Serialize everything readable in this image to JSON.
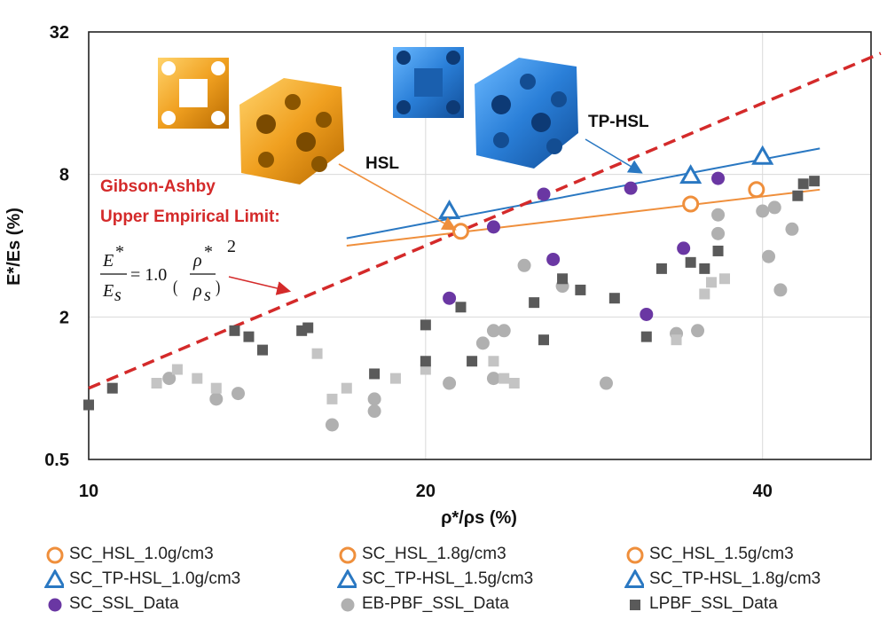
{
  "colors": {
    "orange": "#ef8f3c",
    "blue": "#2a78c2",
    "purple": "#6a37a3",
    "red": "#d42a2a",
    "eb_gray": "#b0b0b0",
    "lpbf_dark": "#5a5a5a",
    "lpbf_light": "#c4c4c4"
  },
  "annotations": {
    "hsl_label": "HSL",
    "tphsl_label": "TP-HSL",
    "ga_line1": "Gibson-Ashby",
    "ga_line2": "Upper Empirical Limit:",
    "eq_E": "E",
    "eq_Es": "E",
    "eq_s": "s",
    "eq_star": "*",
    "eq_coef": "= 1.0",
    "eq_rho": "ρ",
    "eq_exp": "2",
    "x_title": "ρ*/ρs (%)",
    "y_title": "E*/Es (%)"
  },
  "chart_data": {
    "type": "scatter",
    "xscale": "log",
    "yscale": "log",
    "xlabel": "ρ*/ρs (%)",
    "ylabel": "E*/Es (%)",
    "xlim": [
      10,
      50
    ],
    "ylim": [
      0.5,
      32
    ],
    "xticks": [
      10,
      20,
      40
    ],
    "yticks": [
      0.5,
      2,
      8,
      32
    ],
    "grid": true,
    "series": [
      {
        "name": "SC_HSL_1.0g/cm3",
        "marker": "circle-open",
        "color": "#ef8f3c",
        "points": [
          [
            21.5,
            4.6
          ]
        ]
      },
      {
        "name": "SC_HSL_1.8g/cm3",
        "marker": "circle-open",
        "color": "#ef8f3c",
        "points": [
          [
            34.5,
            6.0
          ]
        ]
      },
      {
        "name": "SC_HSL_1.5g/cm3",
        "marker": "circle-open",
        "color": "#ef8f3c",
        "points": [
          [
            39.5,
            6.9
          ]
        ]
      },
      {
        "name": "SC_TP-HSL_1.0g/cm3",
        "marker": "triangle-open",
        "color": "#2a78c2",
        "points": [
          [
            21.0,
            5.6
          ]
        ]
      },
      {
        "name": "SC_TP-HSL_1.5g/cm3",
        "marker": "triangle-open",
        "color": "#2a78c2",
        "points": [
          [
            34.5,
            7.9
          ]
        ]
      },
      {
        "name": "SC_TP-HSL_1.8g/cm3",
        "marker": "triangle-open",
        "color": "#2a78c2",
        "points": [
          [
            40.0,
            9.5
          ]
        ]
      },
      {
        "name": "SC_SSL_Data",
        "marker": "circle",
        "color": "#6a37a3",
        "points": [
          [
            21.0,
            2.4
          ],
          [
            23.0,
            4.8
          ],
          [
            25.5,
            6.6
          ],
          [
            26.0,
            3.5
          ],
          [
            30.5,
            7.0
          ],
          [
            31.5,
            2.05
          ],
          [
            34.0,
            3.9
          ],
          [
            36.5,
            7.7
          ]
        ]
      },
      {
        "name": "EB-PBF_SSL_Data",
        "marker": "circle",
        "color": "#b0b0b0",
        "points": [
          [
            11.8,
            1.1
          ],
          [
            13.0,
            0.9
          ],
          [
            13.6,
            0.95
          ],
          [
            16.5,
            0.7
          ],
          [
            18.0,
            0.8
          ],
          [
            18.0,
            0.9
          ],
          [
            21.0,
            1.05
          ],
          [
            22.5,
            1.55
          ],
          [
            23.0,
            1.75
          ],
          [
            23.0,
            1.1
          ],
          [
            23.5,
            1.75
          ],
          [
            24.5,
            3.3
          ],
          [
            26.5,
            2.7
          ],
          [
            29.0,
            1.05
          ],
          [
            33.5,
            1.7
          ],
          [
            35.0,
            1.75
          ],
          [
            36.5,
            5.4
          ],
          [
            36.5,
            4.5
          ],
          [
            40.0,
            5.6
          ],
          [
            41.0,
            5.8
          ],
          [
            40.5,
            3.6
          ],
          [
            41.5,
            2.6
          ],
          [
            42.5,
            4.7
          ]
        ]
      },
      {
        "name": "LPBF_SSL_Data",
        "marker": "square",
        "color": "#5a5a5a",
        "points": [
          [
            10.0,
            0.85
          ],
          [
            10.5,
            1.0
          ],
          [
            13.5,
            1.75
          ],
          [
            13.9,
            1.65
          ],
          [
            14.3,
            1.45
          ],
          [
            15.5,
            1.75
          ],
          [
            15.7,
            1.8
          ],
          [
            18.0,
            1.15
          ],
          [
            20.0,
            1.85
          ],
          [
            20.0,
            1.3
          ],
          [
            21.5,
            2.2
          ],
          [
            22.0,
            1.3
          ],
          [
            25.0,
            2.3
          ],
          [
            25.5,
            1.6
          ],
          [
            26.5,
            2.9
          ],
          [
            27.5,
            2.6
          ],
          [
            29.5,
            2.4
          ],
          [
            31.5,
            1.65
          ],
          [
            32.5,
            3.2
          ],
          [
            34.5,
            3.4
          ],
          [
            35.5,
            3.2
          ],
          [
            36.5,
            3.8
          ],
          [
            43.0,
            6.5
          ],
          [
            43.5,
            7.3
          ],
          [
            44.5,
            7.5
          ]
        ]
      },
      {
        "name": "LPBF_SSL_Data_light",
        "legend": false,
        "marker": "square",
        "color": "#c4c4c4",
        "points": [
          [
            11.5,
            1.05
          ],
          [
            12.0,
            1.2
          ],
          [
            12.5,
            1.1
          ],
          [
            13.0,
            1.0
          ],
          [
            16.0,
            1.4
          ],
          [
            16.5,
            0.9
          ],
          [
            17.0,
            1.0
          ],
          [
            18.8,
            1.1
          ],
          [
            20.0,
            1.2
          ],
          [
            23.0,
            1.3
          ],
          [
            23.5,
            1.1
          ],
          [
            24.0,
            1.05
          ],
          [
            33.5,
            1.6
          ],
          [
            35.5,
            2.5
          ],
          [
            36.0,
            2.8
          ],
          [
            37.0,
            2.9
          ]
        ]
      }
    ],
    "fits": [
      {
        "name": "HSL fit",
        "color": "#ef8f3c",
        "x": [
          17.0,
          45.0
        ],
        "y": [
          4.0,
          6.9
        ]
      },
      {
        "name": "TP-HSL fit",
        "color": "#2a78c2",
        "x": [
          17.0,
          45.0
        ],
        "y": [
          4.3,
          10.3
        ]
      },
      {
        "name": "Gibson-Ashby upper empirical limit",
        "style": "dashed",
        "color": "#d42a2a",
        "x": [
          10.0,
          51.0
        ],
        "y": [
          1.0,
          26.0
        ]
      }
    ]
  },
  "legend": [
    {
      "label": "SC_HSL_1.0g/cm3",
      "marker": "circle-open",
      "color": "#ef8f3c"
    },
    {
      "label": "SC_HSL_1.8g/cm3",
      "marker": "circle-open",
      "color": "#ef8f3c"
    },
    {
      "label": "SC_HSL_1.5g/cm3",
      "marker": "circle-open",
      "color": "#ef8f3c"
    },
    {
      "label": "SC_TP-HSL_1.0g/cm3",
      "marker": "triangle-open",
      "color": "#2a78c2"
    },
    {
      "label": "SC_TP-HSL_1.5g/cm3",
      "marker": "triangle-open",
      "color": "#2a78c2"
    },
    {
      "label": "SC_TP-HSL_1.8g/cm3",
      "marker": "triangle-open",
      "color": "#2a78c2"
    },
    {
      "label": "SC_SSL_Data",
      "marker": "circle",
      "color": "#6a37a3"
    },
    {
      "label": "EB-PBF_SSL_Data",
      "marker": "circle",
      "color": "#b0b0b0"
    },
    {
      "label": "LPBF_SSL_Data",
      "marker": "square",
      "color": "#5a5a5a"
    }
  ]
}
